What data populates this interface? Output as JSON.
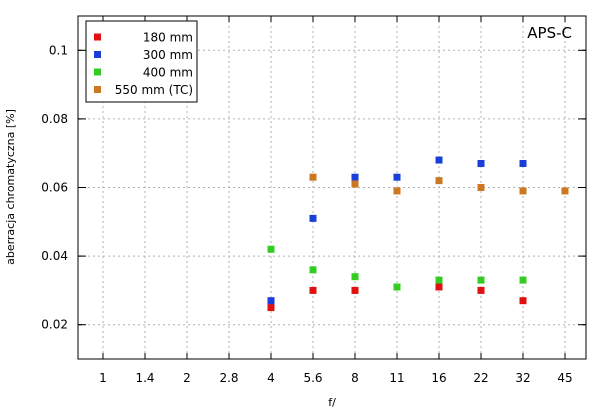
{
  "chart_data": {
    "type": "scatter",
    "annotation": "APS-C",
    "xlabel": "f/",
    "ylabel": "aberracja chromatyczna [%]",
    "categories": [
      "1",
      "1.4",
      "2",
      "2.8",
      "4",
      "5.6",
      "8",
      "11",
      "16",
      "22",
      "32",
      "45"
    ],
    "ylim": [
      0.01,
      0.11
    ],
    "yticks": [
      0.02,
      0.04,
      0.06,
      0.08,
      0.1
    ],
    "ytick_labels": [
      "0.02",
      "0.04",
      "0.06",
      "0.08",
      "0.1"
    ],
    "grid": true,
    "legend_position": "top-left",
    "series": [
      {
        "name": "180 mm",
        "color": "#e01010",
        "points": [
          {
            "x": "4",
            "y": 0.025
          },
          {
            "x": "5.6",
            "y": 0.03
          },
          {
            "x": "8",
            "y": 0.03
          },
          {
            "x": "16",
            "y": 0.031
          },
          {
            "x": "22",
            "y": 0.03
          },
          {
            "x": "32",
            "y": 0.027
          }
        ]
      },
      {
        "name": "300 mm",
        "color": "#1a3fd8",
        "points": [
          {
            "x": "4",
            "y": 0.027
          },
          {
            "x": "5.6",
            "y": 0.051
          },
          {
            "x": "8",
            "y": 0.063
          },
          {
            "x": "11",
            "y": 0.063
          },
          {
            "x": "16",
            "y": 0.068
          },
          {
            "x": "22",
            "y": 0.067
          },
          {
            "x": "32",
            "y": 0.067
          }
        ]
      },
      {
        "name": "400 mm",
        "color": "#33cc22",
        "points": [
          {
            "x": "4",
            "y": 0.042
          },
          {
            "x": "5.6",
            "y": 0.036
          },
          {
            "x": "8",
            "y": 0.034
          },
          {
            "x": "11",
            "y": 0.031
          },
          {
            "x": "16",
            "y": 0.033
          },
          {
            "x": "22",
            "y": 0.033
          },
          {
            "x": "32",
            "y": 0.033
          }
        ]
      },
      {
        "name": "550 mm (TC)",
        "color": "#cc7722",
        "points": [
          {
            "x": "5.6",
            "y": 0.063
          },
          {
            "x": "8",
            "y": 0.061
          },
          {
            "x": "11",
            "y": 0.059
          },
          {
            "x": "16",
            "y": 0.062
          },
          {
            "x": "22",
            "y": 0.06
          },
          {
            "x": "32",
            "y": 0.059
          },
          {
            "x": "45",
            "y": 0.059
          }
        ]
      }
    ]
  }
}
